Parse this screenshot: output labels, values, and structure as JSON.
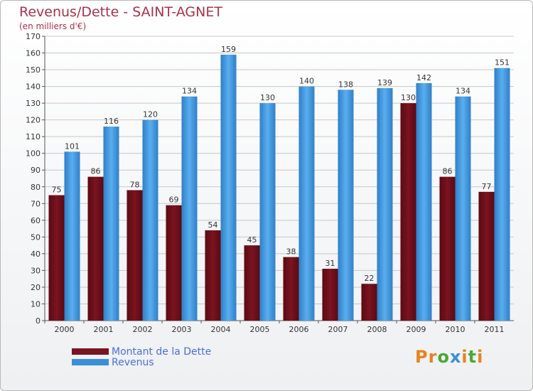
{
  "header": {
    "title": "Revenus/Dette - SAINT-AGNET",
    "subtitle": "(en milliers d'€)"
  },
  "logo": {
    "text": "Proxiti"
  },
  "colors": {
    "dette": "#7a1420",
    "revenus": "#3a8fd9",
    "axis_text": "#333333",
    "grid": "#c8c8c8",
    "title": "#a8324a",
    "legend_text": "#4a6fd8",
    "logo_letters": [
      "#e8821e",
      "#e8821e",
      "#4aa832",
      "#3a8fd9",
      "#e8821e",
      "#4aa832",
      "#e8821e"
    ]
  },
  "chart_data": {
    "type": "bar",
    "title": "Revenus/Dette - SAINT-AGNET",
    "subtitle": "(en milliers d'€)",
    "categories": [
      "2000",
      "2001",
      "2002",
      "2003",
      "2004",
      "2005",
      "2006",
      "2007",
      "2008",
      "2009",
      "2010",
      "2011"
    ],
    "series": [
      {
        "name": "Montant de la Dette",
        "values": [
          75,
          86,
          78,
          69,
          54,
          45,
          38,
          31,
          22,
          130,
          86,
          77
        ]
      },
      {
        "name": "Revenus",
        "values": [
          101,
          116,
          120,
          134,
          159,
          130,
          140,
          138,
          139,
          142,
          134,
          151
        ]
      }
    ],
    "ylim": [
      0,
      170
    ],
    "yticks": [
      0,
      10,
      20,
      30,
      40,
      50,
      60,
      70,
      80,
      90,
      100,
      110,
      120,
      130,
      140,
      150,
      160,
      170
    ],
    "grid": true,
    "legend_position": "bottom-left"
  }
}
